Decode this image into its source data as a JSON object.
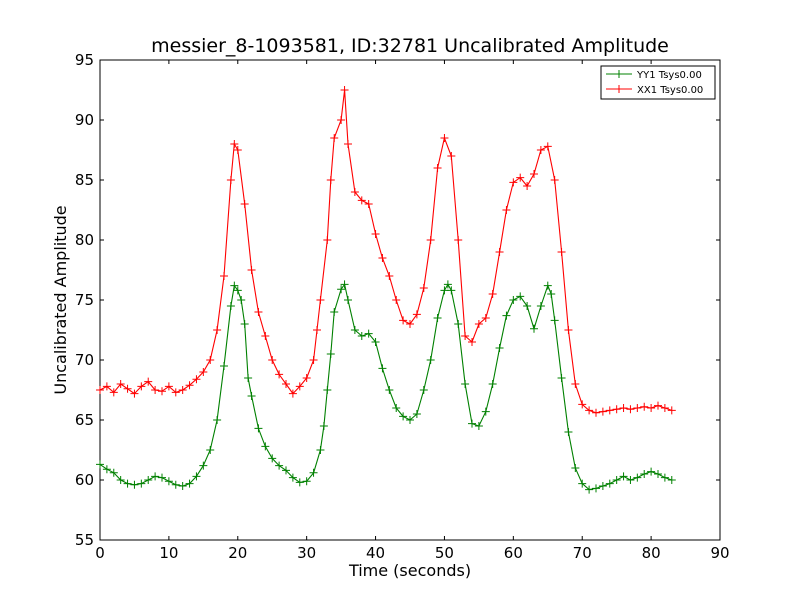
{
  "chart_data": {
    "type": "line",
    "title": "messier_8-1093581, ID:32781 Uncalibrated Amplitude",
    "xlabel": "Time (seconds)",
    "ylabel": "Uncalibrated Amplitude",
    "xlim": [
      0,
      90
    ],
    "ylim": [
      55,
      95
    ],
    "x_ticks": [
      0,
      10,
      20,
      30,
      40,
      50,
      60,
      70,
      80,
      90
    ],
    "y_ticks": [
      55,
      60,
      65,
      70,
      75,
      80,
      85,
      90,
      95
    ],
    "grid": false,
    "legend_position": "top-right",
    "marker": "+",
    "series": [
      {
        "name": "YY1 Tsys0.00",
        "color": "#008000",
        "points": [
          [
            0,
            61.3
          ],
          [
            1,
            60.9
          ],
          [
            2,
            60.6
          ],
          [
            3,
            60.0
          ],
          [
            4,
            59.7
          ],
          [
            5,
            59.6
          ],
          [
            6,
            59.7
          ],
          [
            7,
            60.0
          ],
          [
            8,
            60.3
          ],
          [
            9,
            60.2
          ],
          [
            10,
            59.9
          ],
          [
            11,
            59.6
          ],
          [
            12,
            59.5
          ],
          [
            13,
            59.7
          ],
          [
            14,
            60.3
          ],
          [
            15,
            61.2
          ],
          [
            16,
            62.5
          ],
          [
            17,
            65.0
          ],
          [
            18,
            69.5
          ],
          [
            19,
            74.5
          ],
          [
            19.5,
            76.2
          ],
          [
            20,
            75.8
          ],
          [
            20.5,
            75.0
          ],
          [
            21,
            73.0
          ],
          [
            21.5,
            68.5
          ],
          [
            22,
            67.0
          ],
          [
            23,
            64.3
          ],
          [
            24,
            62.8
          ],
          [
            25,
            61.8
          ],
          [
            26,
            61.2
          ],
          [
            27,
            60.8
          ],
          [
            28,
            60.2
          ],
          [
            29,
            59.8
          ],
          [
            30,
            59.9
          ],
          [
            31,
            60.6
          ],
          [
            32,
            62.5
          ],
          [
            32.5,
            64.5
          ],
          [
            33,
            67.5
          ],
          [
            33.5,
            70.5
          ],
          [
            34,
            74.0
          ],
          [
            35,
            75.9
          ],
          [
            35.5,
            76.3
          ],
          [
            36,
            75.0
          ],
          [
            37,
            72.5
          ],
          [
            38,
            72.0
          ],
          [
            39,
            72.2
          ],
          [
            40,
            71.5
          ],
          [
            41,
            69.3
          ],
          [
            42,
            67.5
          ],
          [
            43,
            66.0
          ],
          [
            44,
            65.3
          ],
          [
            45,
            65.0
          ],
          [
            46,
            65.5
          ],
          [
            47,
            67.5
          ],
          [
            48,
            70.0
          ],
          [
            49,
            73.5
          ],
          [
            50,
            75.8
          ],
          [
            50.5,
            76.3
          ],
          [
            51,
            75.8
          ],
          [
            52,
            73.0
          ],
          [
            53,
            68.0
          ],
          [
            54,
            64.7
          ],
          [
            55,
            64.5
          ],
          [
            56,
            65.7
          ],
          [
            57,
            68.0
          ],
          [
            58,
            71.0
          ],
          [
            59,
            73.7
          ],
          [
            60,
            75.0
          ],
          [
            61,
            75.3
          ],
          [
            62,
            74.5
          ],
          [
            63,
            72.6
          ],
          [
            64,
            74.5
          ],
          [
            65,
            76.2
          ],
          [
            65.5,
            75.5
          ],
          [
            66,
            73.3
          ],
          [
            67,
            68.5
          ],
          [
            68,
            64.0
          ],
          [
            69,
            61.0
          ],
          [
            70,
            59.7
          ],
          [
            71,
            59.2
          ],
          [
            72,
            59.3
          ],
          [
            73,
            59.5
          ],
          [
            74,
            59.7
          ],
          [
            75,
            60.0
          ],
          [
            76,
            60.3
          ],
          [
            77,
            60.0
          ],
          [
            78,
            60.2
          ],
          [
            79,
            60.5
          ],
          [
            80,
            60.7
          ],
          [
            81,
            60.5
          ],
          [
            82,
            60.2
          ],
          [
            83,
            60.0
          ]
        ]
      },
      {
        "name": "XX1 Tsys0.00",
        "color": "#ff0000",
        "points": [
          [
            0,
            67.5
          ],
          [
            1,
            67.8
          ],
          [
            2,
            67.3
          ],
          [
            3,
            68.0
          ],
          [
            4,
            67.6
          ],
          [
            5,
            67.2
          ],
          [
            6,
            67.8
          ],
          [
            7,
            68.2
          ],
          [
            8,
            67.5
          ],
          [
            9,
            67.4
          ],
          [
            10,
            67.8
          ],
          [
            11,
            67.3
          ],
          [
            12,
            67.5
          ],
          [
            13,
            67.9
          ],
          [
            14,
            68.4
          ],
          [
            15,
            69.0
          ],
          [
            16,
            70.0
          ],
          [
            17,
            72.5
          ],
          [
            18,
            77.0
          ],
          [
            19,
            85.0
          ],
          [
            19.5,
            88.0
          ],
          [
            20,
            87.5
          ],
          [
            21,
            83.0
          ],
          [
            22,
            77.5
          ],
          [
            23,
            74.0
          ],
          [
            24,
            72.0
          ],
          [
            25,
            70.0
          ],
          [
            26,
            68.8
          ],
          [
            27,
            68.0
          ],
          [
            28,
            67.2
          ],
          [
            29,
            67.8
          ],
          [
            30,
            68.5
          ],
          [
            31,
            70.0
          ],
          [
            31.5,
            72.5
          ],
          [
            32,
            75.0
          ],
          [
            33,
            80.0
          ],
          [
            33.5,
            85.0
          ],
          [
            34,
            88.5
          ],
          [
            35,
            90.0
          ],
          [
            35.5,
            92.5
          ],
          [
            36,
            88.0
          ],
          [
            37,
            84.0
          ],
          [
            38,
            83.3
          ],
          [
            39,
            83.0
          ],
          [
            40,
            80.5
          ],
          [
            41,
            78.5
          ],
          [
            42,
            77.0
          ],
          [
            43,
            75.0
          ],
          [
            44,
            73.3
          ],
          [
            45,
            73.0
          ],
          [
            46,
            73.8
          ],
          [
            47,
            76.0
          ],
          [
            48,
            80.0
          ],
          [
            49,
            86.0
          ],
          [
            50,
            88.5
          ],
          [
            51,
            87.0
          ],
          [
            52,
            80.0
          ],
          [
            53,
            72.0
          ],
          [
            54,
            71.5
          ],
          [
            55,
            73.0
          ],
          [
            56,
            73.5
          ],
          [
            57,
            75.5
          ],
          [
            58,
            79.0
          ],
          [
            59,
            82.5
          ],
          [
            60,
            84.8
          ],
          [
            61,
            85.2
          ],
          [
            62,
            84.5
          ],
          [
            63,
            85.5
          ],
          [
            64,
            87.5
          ],
          [
            65,
            87.8
          ],
          [
            66,
            85.0
          ],
          [
            67,
            79.0
          ],
          [
            68,
            72.5
          ],
          [
            69,
            68.0
          ],
          [
            70,
            66.3
          ],
          [
            71,
            65.8
          ],
          [
            72,
            65.6
          ],
          [
            73,
            65.7
          ],
          [
            74,
            65.8
          ],
          [
            75,
            65.9
          ],
          [
            76,
            66.0
          ],
          [
            77,
            65.9
          ],
          [
            78,
            66.0
          ],
          [
            79,
            66.1
          ],
          [
            80,
            66.0
          ],
          [
            81,
            66.2
          ],
          [
            82,
            66.0
          ],
          [
            83,
            65.8
          ]
        ]
      }
    ]
  }
}
